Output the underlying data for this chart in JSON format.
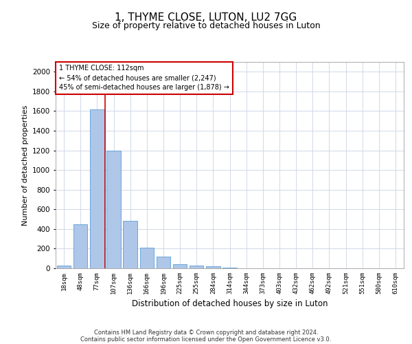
{
  "title1": "1, THYME CLOSE, LUTON, LU2 7GG",
  "title2": "Size of property relative to detached houses in Luton",
  "xlabel": "Distribution of detached houses by size in Luton",
  "ylabel": "Number of detached properties",
  "categories": [
    "18sqm",
    "48sqm",
    "77sqm",
    "107sqm",
    "136sqm",
    "166sqm",
    "196sqm",
    "225sqm",
    "255sqm",
    "284sqm",
    "314sqm",
    "344sqm",
    "373sqm",
    "403sqm",
    "432sqm",
    "462sqm",
    "492sqm",
    "521sqm",
    "551sqm",
    "580sqm",
    "610sqm"
  ],
  "values": [
    28,
    450,
    1620,
    1200,
    480,
    210,
    120,
    40,
    25,
    20,
    10,
    0,
    0,
    0,
    0,
    0,
    0,
    0,
    0,
    0,
    0
  ],
  "bar_color": "#aec6e8",
  "bar_edge_color": "#5a9fd4",
  "vline_color": "#cc0000",
  "vline_pos": 2.5,
  "annotation_text": "1 THYME CLOSE: 112sqm\n← 54% of detached houses are smaller (2,247)\n45% of semi-detached houses are larger (1,878) →",
  "box_color": "#cc0000",
  "ylim": [
    0,
    2100
  ],
  "yticks": [
    0,
    200,
    400,
    600,
    800,
    1000,
    1200,
    1400,
    1600,
    1800,
    2000
  ],
  "footnote_line1": "Contains HM Land Registry data © Crown copyright and database right 2024.",
  "footnote_line2": "Contains public sector information licensed under the Open Government Licence v3.0.",
  "grid_color": "#d0d8e8",
  "title1_fontsize": 11,
  "title2_fontsize": 9,
  "ylabel_fontsize": 8,
  "xlabel_fontsize": 8.5
}
